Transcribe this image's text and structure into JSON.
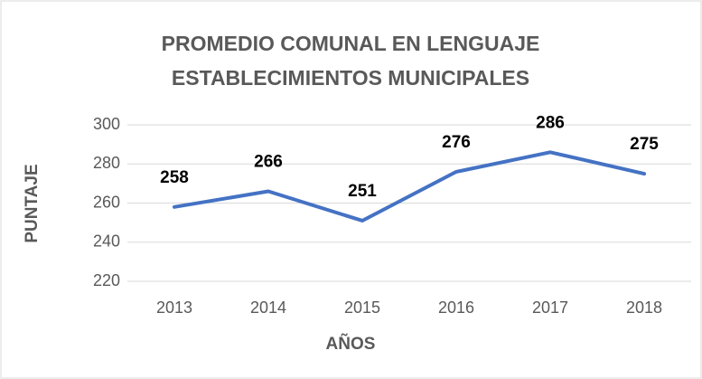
{
  "chart_data": {
    "type": "line",
    "title": [
      "PROMEDIO COMUNAL EN LENGUAJE",
      "ESTABLECIMIENTOS MUNICIPALES"
    ],
    "x_label": "AÑOS",
    "y_label": "PUNTAJE",
    "categories": [
      "2013",
      "2014",
      "2015",
      "2016",
      "2017",
      "2018"
    ],
    "values": [
      258,
      266,
      251,
      276,
      286,
      275
    ],
    "color": "#4472c4",
    "ylim": [
      220,
      300
    ],
    "yticks": [
      220,
      240,
      260,
      280,
      300
    ],
    "grid": true
  }
}
